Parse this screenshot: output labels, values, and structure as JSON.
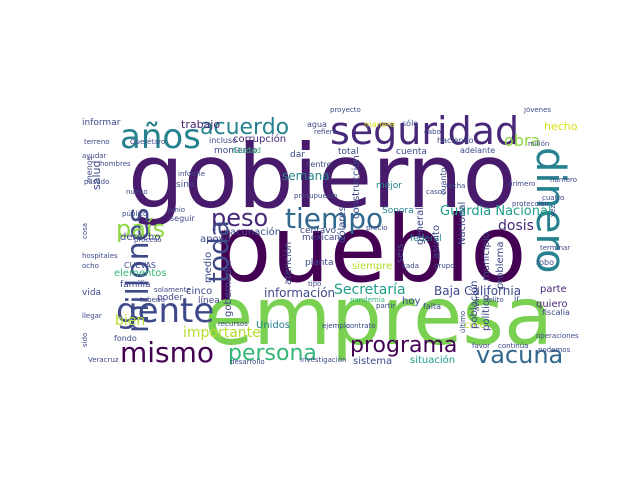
{
  "colors": {
    "dark_purple": "#440154",
    "purple": "#482878",
    "indigo": "#3e4989",
    "blue": "#31688e",
    "teal": "#26828e",
    "green_teal": "#1f9e89",
    "green": "#35b779",
    "light_green": "#6ece58",
    "lime": "#8fd744",
    "yellow": "#d8e219"
  },
  "words": [
    {
      "text": "gobierno"
    },
    {
      "text": "pueblo"
    },
    {
      "text": "empresa"
    },
    {
      "text": "seguridad"
    },
    {
      "text": "años"
    },
    {
      "text": "dinero"
    },
    {
      "text": "millones"
    },
    {
      "text": "gente"
    },
    {
      "text": "mismo"
    },
    {
      "text": "tiempo"
    },
    {
      "text": "acuerdo"
    },
    {
      "text": "peso"
    },
    {
      "text": "toda"
    },
    {
      "text": "país"
    },
    {
      "text": "persona"
    },
    {
      "text": "programa"
    },
    {
      "text": "vacuna"
    },
    {
      "text": "obra"
    },
    {
      "text": "Secretaría"
    },
    {
      "text": "Guardia Nacional"
    },
    {
      "text": "dosis"
    },
    {
      "text": "Baja California"
    },
    {
      "text": "importante"
    },
    {
      "text": "información"
    },
    {
      "text": "bien"
    },
    {
      "text": "trabajo"
    },
    {
      "text": "semana"
    },
    {
      "text": "hecho"
    },
    {
      "text": "salud"
    },
    {
      "text": "corrupción"
    },
    {
      "text": "derecho"
    },
    {
      "text": "vacunación"
    },
    {
      "text": "elementos"
    },
    {
      "text": "apoyo"
    },
    {
      "text": "cinco"
    },
    {
      "text": "Unidos"
    },
    {
      "text": "creo"
    },
    {
      "text": "parte"
    },
    {
      "text": "quiero"
    },
    {
      "text": "hoy"
    },
    {
      "text": "siempre"
    },
    {
      "text": "situación"
    },
    {
      "text": "sistema"
    },
    {
      "text": "mexicano"
    },
    {
      "text": "mejor"
    },
    {
      "text": "total"
    },
    {
      "text": "cuenta"
    },
    {
      "text": "Sonora"
    },
    {
      "text": "federal"
    },
    {
      "text": "político"
    },
    {
      "text": "problema"
    },
    {
      "text": "población"
    },
    {
      "text": "municipio"
    },
    {
      "text": "Nacional"
    },
    {
      "text": "asunto"
    },
    {
      "text": "general"
    },
    {
      "text": "seis"
    },
    {
      "text": "construcción"
    },
    {
      "text": "dólares"
    },
    {
      "text": "planta"
    },
    {
      "text": "atención"
    },
    {
      "text": "centavo"
    },
    {
      "text": "centro"
    },
    {
      "text": "dar"
    },
    {
      "text": "agua"
    },
    {
      "text": "momento"
    },
    {
      "text": "incluso"
    },
    {
      "text": "sino"
    },
    {
      "text": "seguir"
    },
    {
      "text": "medio"
    },
    {
      "text": "gobernador"
    },
    {
      "text": "línea"
    },
    {
      "text": "poder"
    },
    {
      "text": "familia"
    },
    {
      "text": "CUEVAS"
    },
    {
      "text": "vida"
    },
    {
      "text": "fondo"
    },
    {
      "text": "informar"
    },
    {
      "text": "menos"
    },
    {
      "text": "manera"
    },
    {
      "text": "sólo"
    },
    {
      "text": "haciendo"
    },
    {
      "text": "adelante"
    },
    {
      "text": "Ciudad"
    },
    {
      "text": "pobre"
    },
    {
      "text": "falta"
    },
    {
      "text": "robo"
    },
    {
      "text": "fiscalía"
    },
    {
      "text": "ir"
    },
    {
      "text": "pandemia"
    },
    {
      "text": "investigación"
    },
    {
      "text": "operaciones"
    },
    {
      "text": "terminar"
    },
    {
      "text": "proyecto"
    },
    {
      "text": "jóvenes"
    },
    {
      "text": "millón"
    },
    {
      "text": "cabo"
    },
    {
      "text": "fecha"
    },
    {
      "text": "cuanto"
    },
    {
      "text": "primero"
    },
    {
      "text": "número"
    },
    {
      "text": "cuatro"
    },
    {
      "text": "ayudar"
    },
    {
      "text": "terreno"
    },
    {
      "text": "pasado"
    },
    {
      "text": "nuevo"
    },
    {
      "text": "público"
    },
    {
      "text": "junio"
    },
    {
      "text": "presupuesto"
    },
    {
      "text": "proceso"
    },
    {
      "text": "ocho"
    },
    {
      "text": "llegar"
    },
    {
      "text": "solamente"
    },
    {
      "text": "tubería"
    },
    {
      "text": "cosa"
    },
    {
      "text": "hospitales"
    },
    {
      "text": "informe"
    },
    {
      "text": "cada"
    },
    {
      "text": "grupo"
    },
    {
      "text": "tipo"
    },
    {
      "text": "delito"
    },
    {
      "text": "favor"
    },
    {
      "text": "último"
    },
    {
      "text": "podemos"
    },
    {
      "text": "continúa"
    },
    {
      "text": "desarrollo"
    },
    {
      "text": "ejemplo"
    },
    {
      "text": "contrato"
    },
    {
      "text": "recursos"
    },
    {
      "text": "hombres"
    },
    {
      "text": "sido"
    },
    {
      "text": "Veracruz"
    },
    {
      "text": "casos"
    },
    {
      "text": "protección"
    },
    {
      "text": "refiere"
    },
    {
      "text": "precio"
    },
    {
      "text": "avance"
    },
    {
      "text": "partir"
    },
    {
      "text": "vez"
    },
    {
      "text": "Querétaro"
    },
    {
      "text": "secretario"
    }
  ]
}
